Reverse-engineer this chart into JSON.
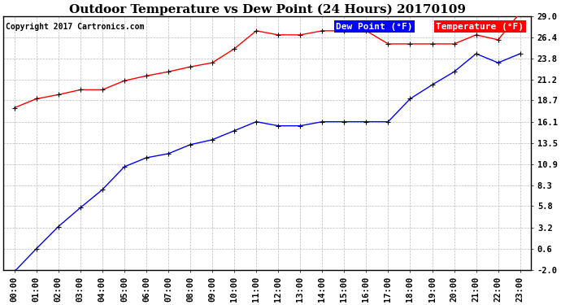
{
  "title": "Outdoor Temperature vs Dew Point (24 Hours) 20170109",
  "copyright": "Copyright 2017 Cartronics.com",
  "x_labels": [
    "00:00",
    "01:00",
    "02:00",
    "03:00",
    "04:00",
    "05:00",
    "06:00",
    "07:00",
    "08:00",
    "09:00",
    "10:00",
    "11:00",
    "12:00",
    "13:00",
    "14:00",
    "15:00",
    "16:00",
    "17:00",
    "18:00",
    "19:00",
    "20:00",
    "21:00",
    "22:00",
    "23:00"
  ],
  "temperature": [
    17.8,
    18.9,
    19.4,
    20.0,
    20.0,
    21.1,
    21.7,
    22.2,
    22.8,
    23.3,
    25.0,
    27.2,
    26.7,
    26.7,
    27.2,
    27.2,
    27.2,
    25.6,
    25.6,
    25.6,
    25.6,
    26.7,
    26.1,
    29.4
  ],
  "dewpoint": [
    -2.2,
    0.6,
    3.3,
    5.6,
    7.8,
    10.6,
    11.7,
    12.2,
    13.3,
    13.9,
    15.0,
    16.1,
    15.6,
    15.6,
    16.1,
    16.1,
    16.1,
    16.1,
    18.9,
    20.6,
    22.2,
    24.4,
    23.3,
    24.4
  ],
  "y_ticks": [
    -2.0,
    0.6,
    3.2,
    5.8,
    8.3,
    10.9,
    13.5,
    16.1,
    18.7,
    21.2,
    23.8,
    26.4,
    29.0
  ],
  "y_labels": [
    "-2.0",
    "0.6",
    "3.2",
    "5.8",
    "8.3",
    "10.9",
    "13.5",
    "16.1",
    "18.7",
    "21.2",
    "23.8",
    "26.4",
    "29.0"
  ],
  "ylim": [
    -2.0,
    29.0
  ],
  "temp_color": "#ff0000",
  "dew_color": "#0000ff",
  "marker_color": "#000000",
  "bg_color": "#ffffff",
  "plot_bg_color": "#ffffff",
  "grid_color": "#bbbbbb",
  "legend_dew_bg": "#0000ff",
  "legend_temp_bg": "#ff0000",
  "legend_text_color": "#ffffff",
  "title_fontsize": 11,
  "copyright_fontsize": 7,
  "tick_fontsize": 7.5,
  "legend_fontsize": 8
}
